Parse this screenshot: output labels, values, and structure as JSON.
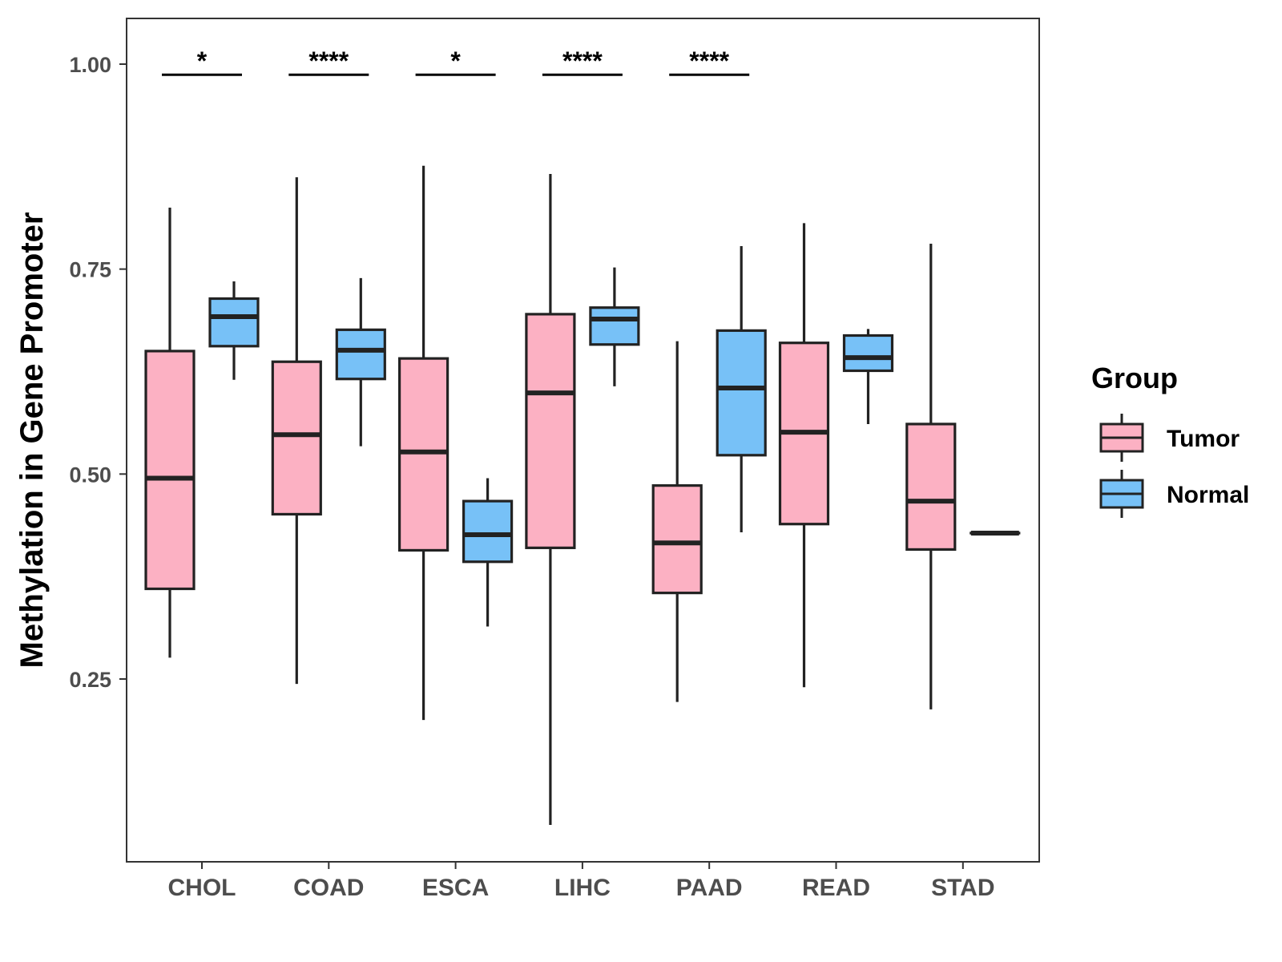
{
  "chart_data": {
    "type": "boxplot",
    "title": "",
    "xlabel": "",
    "ylabel": "Methylation in Gene Promoter",
    "ylim": [
      0.045,
      1.075
    ],
    "yticks": [
      0.25,
      0.5,
      0.75,
      1.0
    ],
    "ytick_labels": [
      "0.25",
      "0.50",
      "0.75",
      "1.00"
    ],
    "grid": false,
    "categories": [
      "CHOL",
      "COAD",
      "ESCA",
      "LIHC",
      "PAAD",
      "READ",
      "STAD"
    ],
    "legend": {
      "title": "Group",
      "position": "right",
      "entries": [
        {
          "name": "Tumor",
          "color": "#FCB1C3"
        },
        {
          "name": "Normal",
          "color": "#77C1F7"
        }
      ]
    },
    "series": [
      {
        "name": "Tumor",
        "color": "#FCB1C3",
        "boxes": [
          {
            "category": "CHOL",
            "min": 0.276,
            "q1": 0.36,
            "median": 0.495,
            "q3": 0.65,
            "max": 0.825
          },
          {
            "category": "COAD",
            "min": 0.244,
            "q1": 0.451,
            "median": 0.548,
            "q3": 0.637,
            "max": 0.862
          },
          {
            "category": "ESCA",
            "min": 0.2,
            "q1": 0.407,
            "median": 0.527,
            "q3": 0.641,
            "max": 0.876
          },
          {
            "category": "LIHC",
            "min": 0.072,
            "q1": 0.41,
            "median": 0.599,
            "q3": 0.695,
            "max": 0.866
          },
          {
            "category": "PAAD",
            "min": 0.222,
            "q1": 0.355,
            "median": 0.416,
            "q3": 0.486,
            "max": 0.662
          },
          {
            "category": "READ",
            "min": 0.24,
            "q1": 0.439,
            "median": 0.551,
            "q3": 0.66,
            "max": 0.806
          },
          {
            "category": "STAD",
            "min": 0.213,
            "q1": 0.408,
            "median": 0.467,
            "q3": 0.561,
            "max": 0.781
          }
        ]
      },
      {
        "name": "Normal",
        "color": "#77C1F7",
        "boxes": [
          {
            "category": "CHOL",
            "min": 0.615,
            "q1": 0.656,
            "median": 0.692,
            "q3": 0.714,
            "max": 0.735
          },
          {
            "category": "COAD",
            "min": 0.534,
            "q1": 0.616,
            "median": 0.651,
            "q3": 0.676,
            "max": 0.739
          },
          {
            "category": "ESCA",
            "min": 0.314,
            "q1": 0.393,
            "median": 0.426,
            "q3": 0.467,
            "max": 0.495
          },
          {
            "category": "LIHC",
            "min": 0.607,
            "q1": 0.658,
            "median": 0.689,
            "q3": 0.703,
            "max": 0.752
          },
          {
            "category": "PAAD",
            "min": 0.429,
            "q1": 0.523,
            "median": 0.605,
            "q3": 0.675,
            "max": 0.778
          },
          {
            "category": "READ",
            "min": 0.561,
            "q1": 0.626,
            "median": 0.642,
            "q3": 0.669,
            "max": 0.677
          },
          {
            "category": "STAD",
            "min": 0.428,
            "q1": 0.428,
            "median": 0.428,
            "q3": 0.428,
            "max": 0.428
          }
        ]
      }
    ],
    "annotations": [
      {
        "category": "CHOL",
        "label": "*",
        "y": 0.99
      },
      {
        "category": "COAD",
        "label": "****",
        "y": 0.99
      },
      {
        "category": "ESCA",
        "label": "*",
        "y": 0.99
      },
      {
        "category": "LIHC",
        "label": "****",
        "y": 0.99
      },
      {
        "category": "PAAD",
        "label": "****",
        "y": 0.99
      }
    ]
  }
}
